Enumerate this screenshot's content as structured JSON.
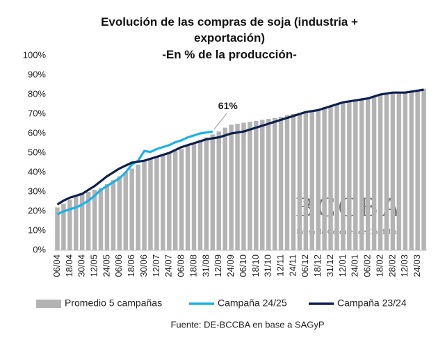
{
  "chart_data": {
    "type": "bar-line",
    "title": "Evolución de las compras de soja (industria + exportación)",
    "subtitle": "-En % de la producción-",
    "categories": [
      "06/04",
      null,
      "18/04",
      null,
      "30/04",
      null,
      "12/05",
      null,
      "24/05",
      null,
      "06/06",
      null,
      "18/06",
      null,
      "30/06",
      null,
      "12/07",
      null,
      "24/07",
      null,
      "06/08",
      null,
      "18/08",
      null,
      "31/08",
      null,
      "12/09",
      null,
      "24/09",
      null,
      "06/10",
      null,
      "18/10",
      null,
      "31/10",
      null,
      "12/11",
      null,
      "24/11",
      null,
      "06/12",
      null,
      "18/12",
      null,
      "31/12",
      null,
      "12/01",
      null,
      "24/01",
      null,
      "06/02",
      null,
      "18/02",
      null,
      "28/02",
      null,
      "12/03",
      null,
      "24/03",
      null
    ],
    "series": [
      {
        "name": "Promedio 5 campañas",
        "kind": "bar",
        "color": "#b3b3b3",
        "values": [
          22,
          24,
          26,
          27.5,
          29,
          30,
          31,
          32,
          34,
          36,
          38,
          40,
          42,
          44,
          46,
          47,
          48,
          49,
          50,
          51,
          52,
          53.5,
          55,
          56.5,
          58,
          59.5,
          61,
          63,
          64.5,
          65,
          65.5,
          66,
          66.5,
          67,
          67.5,
          68,
          68.5,
          69.5,
          70,
          70.5,
          71,
          72,
          72.5,
          73.5,
          74,
          75,
          76,
          76.5,
          77,
          77.5,
          78,
          79,
          80,
          80.5,
          81,
          81.5,
          81.5,
          82,
          82.5,
          83
        ]
      },
      {
        "name": "Campaña 24/25",
        "kind": "line",
        "color": "#1ab2e8",
        "values": [
          18.5,
          20,
          21,
          22,
          23.5,
          25.5,
          28,
          31,
          33,
          35,
          37,
          40,
          44,
          46,
          51,
          50.5,
          52,
          53,
          54,
          55.5,
          56.5,
          58,
          59,
          60,
          60.5,
          61,
          null,
          null,
          null,
          null,
          null,
          null,
          null,
          null,
          null,
          null,
          null,
          null,
          null,
          null,
          null,
          null,
          null,
          null,
          null,
          null,
          null,
          null,
          null,
          null,
          null,
          null,
          null,
          null,
          null,
          null,
          null,
          null,
          null,
          null
        ]
      },
      {
        "name": "Campaña 23/24",
        "kind": "line",
        "color": "#0d1f4f",
        "values": [
          23.5,
          25.5,
          27,
          28,
          29,
          31,
          33,
          35.5,
          38,
          40,
          42,
          43.5,
          45,
          45.5,
          46,
          47,
          48,
          49,
          50,
          51.5,
          53,
          54,
          55,
          56,
          57,
          57.5,
          58,
          59,
          60,
          60.5,
          61,
          62,
          63,
          64,
          65,
          66,
          67,
          68,
          69,
          70,
          71,
          71.5,
          72,
          73,
          74,
          75,
          76,
          76.5,
          77,
          77.5,
          78,
          79,
          80,
          80.5,
          81,
          81,
          81,
          81.5,
          82,
          82.5
        ]
      }
    ],
    "ylim": [
      0,
      100
    ],
    "yticks": [
      {
        "value": 0,
        "label": "0%"
      },
      {
        "value": 10,
        "label": "10%"
      },
      {
        "value": 20,
        "label": "20%"
      },
      {
        "value": 30,
        "label": "30%"
      },
      {
        "value": 40,
        "label": "40%"
      },
      {
        "value": 50,
        "label": "50%"
      },
      {
        "value": 60,
        "label": "60%"
      },
      {
        "value": 70,
        "label": "70%"
      },
      {
        "value": 80,
        "label": "80%"
      },
      {
        "value": 90,
        "label": "90%"
      },
      {
        "value": 100,
        "label": "100%"
      }
    ],
    "grid": false,
    "annotations": [
      {
        "text": "61%",
        "series": 1
      }
    ],
    "watermark": {
      "logo": "BCCBA",
      "name": "Bolsa de Cereales de Córdoba"
    },
    "source": "Fuente: DE-BCCBA en base a SAGyP"
  }
}
